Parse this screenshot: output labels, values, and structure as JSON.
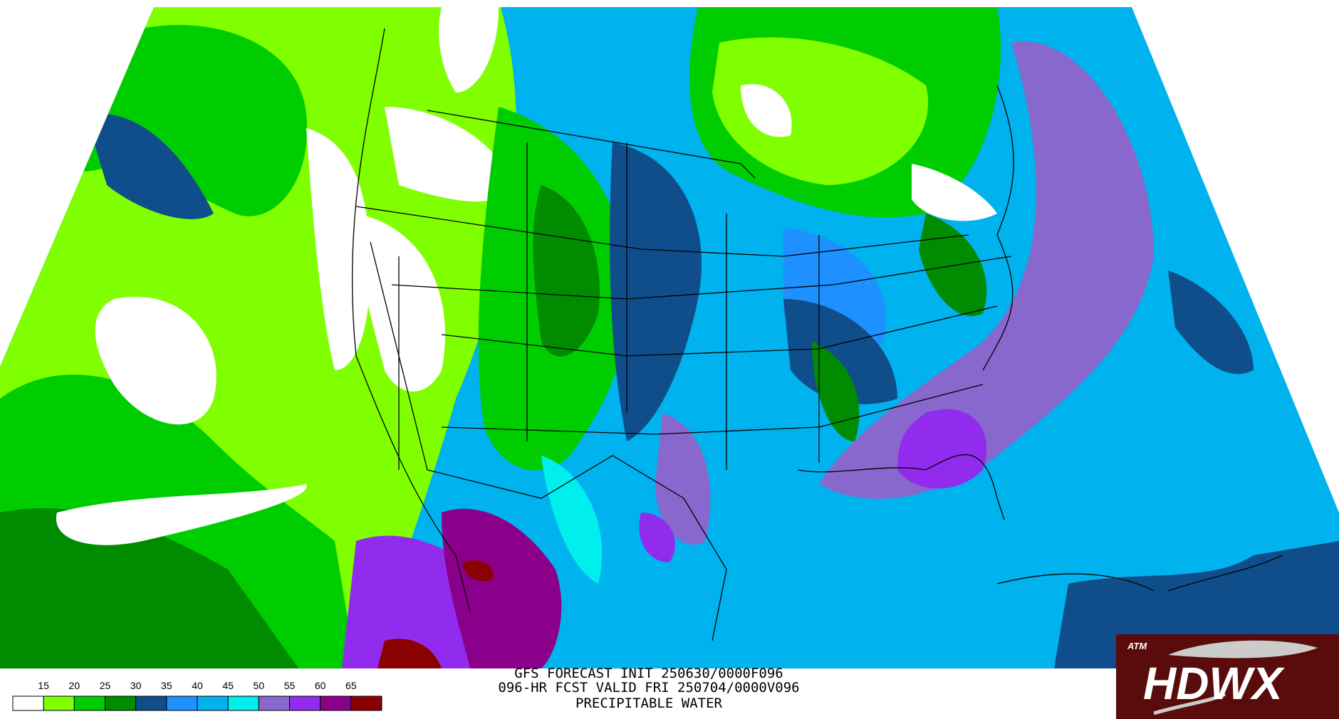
{
  "map": {
    "title_lines": [
      "GFS FORECAST INIT 250630/0000F096",
      "096-HR FCST VALID FRI 250704/0000V096",
      "PRECIPITABLE WATER"
    ],
    "legend": {
      "ticks": [
        15,
        20,
        25,
        30,
        35,
        40,
        45,
        50,
        55,
        60,
        65
      ],
      "colors": [
        "#ffffff",
        "#7fff00",
        "#00cd00",
        "#008b00",
        "#104e8b",
        "#1e90ff",
        "#00b2ee",
        "#00eeee",
        "#8968cd",
        "#912cee",
        "#8b008b",
        "#8b0000"
      ]
    },
    "logo": {
      "emblem": "ATM",
      "text": "HDWX"
    }
  }
}
